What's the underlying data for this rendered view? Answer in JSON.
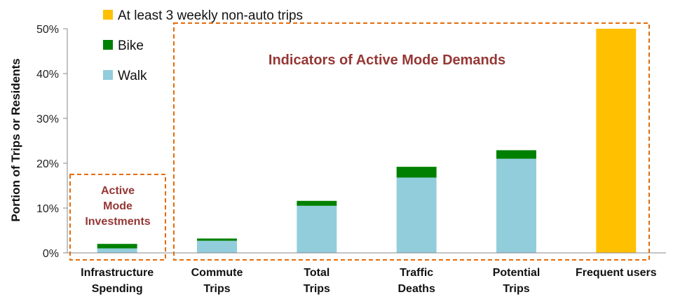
{
  "chart_data": {
    "type": "bar",
    "stacked": true,
    "categories": [
      [
        "Infrastructure",
        "Spending"
      ],
      [
        "Commute",
        "Trips"
      ],
      [
        "Total",
        "Trips"
      ],
      [
        "Traffic",
        "Deaths"
      ],
      [
        "Potential",
        "Trips"
      ],
      [
        "Frequent users"
      ]
    ],
    "series": [
      {
        "name": "Walk",
        "color": "#92CDDC",
        "values": [
          1.0,
          2.7,
          10.5,
          16.8,
          21.0,
          0
        ]
      },
      {
        "name": "Bike",
        "color": "#008000",
        "values": [
          1.0,
          0.5,
          1.1,
          2.4,
          1.9,
          0
        ]
      },
      {
        "name": "At least 3 weekly non-auto trips",
        "color": "#FFC000",
        "values": [
          0,
          0,
          0,
          0,
          0,
          50
        ]
      }
    ],
    "ylabel": "Portion of Trips or Residents",
    "ylim": [
      0,
      50
    ],
    "yticks": [
      "0%",
      "10%",
      "20%",
      "30%",
      "40%",
      "50%"
    ],
    "legend": {
      "placement": "top-left",
      "entries": [
        {
          "label": "At least 3 weekly non-auto trips",
          "color": "#FFC000"
        },
        {
          "label": "Bike",
          "color": "#008000"
        },
        {
          "label": "Walk",
          "color": "#92CDDC"
        }
      ]
    },
    "annotations": {
      "demands_title": "Indicators of Active Mode Demands",
      "investments_lines": [
        "Active",
        "Mode",
        "Investments"
      ],
      "color": "#953735",
      "box_color": "#E46C0A"
    }
  }
}
